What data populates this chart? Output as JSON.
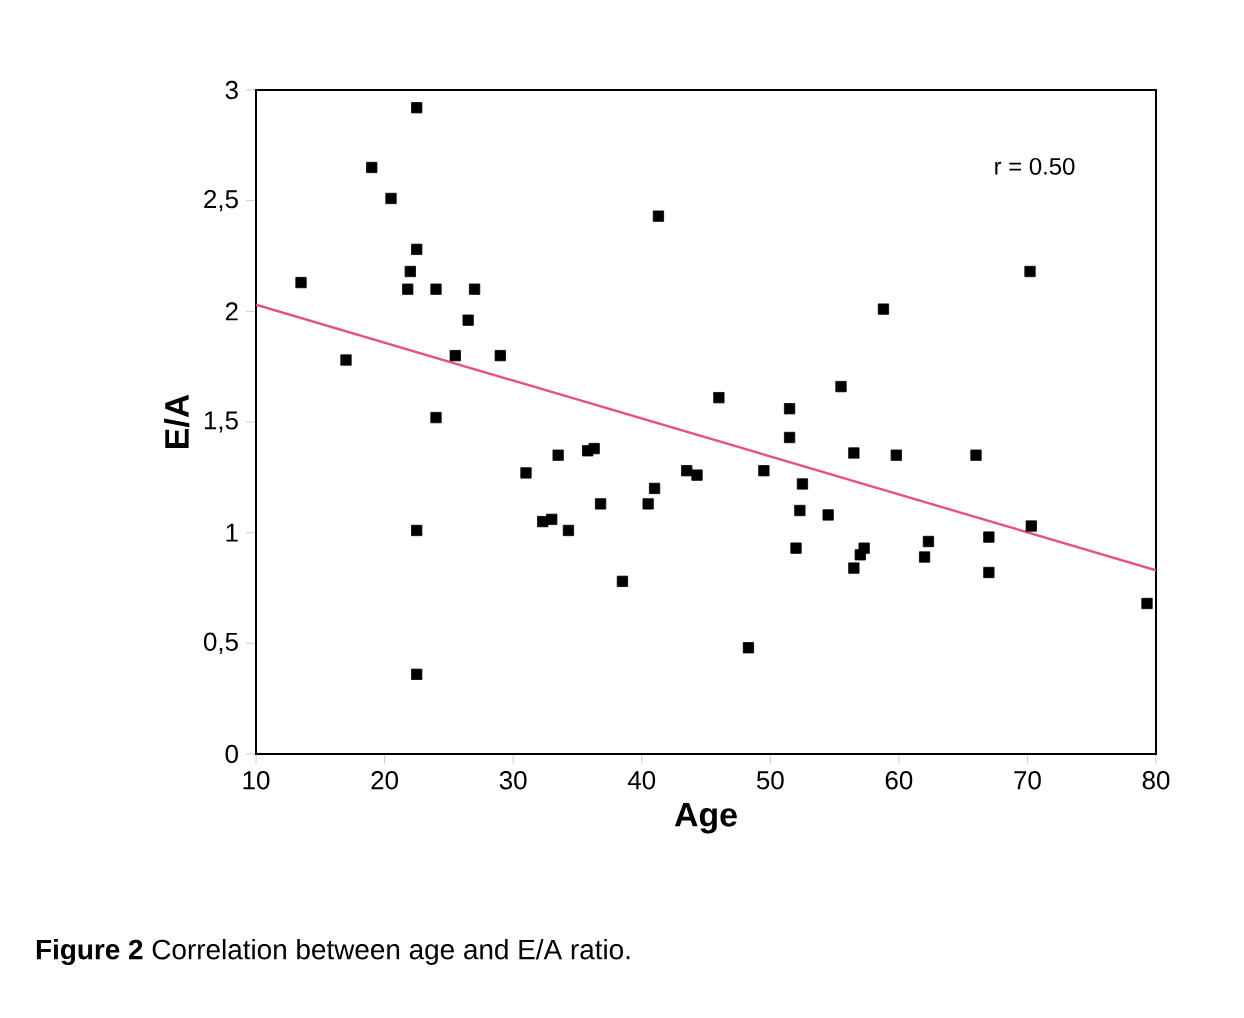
{
  "chart_data": {
    "type": "scatter",
    "xlabel": "Age",
    "ylabel": "E/A",
    "xlim": [
      10,
      80
    ],
    "ylim": [
      0,
      3
    ],
    "xticks": [
      10,
      20,
      30,
      40,
      50,
      60,
      70,
      80
    ],
    "yticks": [
      0,
      {
        "value": 0.5,
        "label": "0,5"
      },
      1,
      {
        "value": 1.5,
        "label": "1,5"
      },
      2,
      {
        "value": 2.5,
        "label": "2,5"
      },
      3
    ],
    "annotations": [
      "r = 0.50",
      "**Figure 2** Correlation between age and E/A ratio."
    ],
    "series": [
      {
        "marker": "square",
        "color": "#000000",
        "x": [
          13.5,
          17,
          19,
          20.5,
          22.5,
          22.5,
          22,
          21.8,
          22.5,
          22.5,
          24,
          24,
          26.5,
          27,
          25.5,
          29,
          31,
          32.3,
          33,
          33.5,
          34.3,
          35.8,
          36.3,
          36.8,
          38.5,
          40.5,
          41,
          41.3,
          43.5,
          44.3,
          46,
          48.3,
          49.5,
          51.5,
          51.5,
          52,
          52.3,
          52.5,
          54.5,
          55.5,
          56.5,
          56.5,
          57,
          57.3,
          58.8,
          59.8,
          62,
          62.3,
          66,
          67,
          67,
          70.2,
          70.3,
          79.3
        ],
        "values": [
          2.13,
          1.78,
          2.65,
          2.51,
          2.92,
          2.28,
          2.18,
          2.1,
          1.01,
          0.36,
          2.1,
          1.52,
          1.96,
          2.1,
          1.8,
          1.8,
          1.27,
          1.05,
          1.06,
          1.35,
          1.01,
          1.37,
          1.38,
          1.13,
          0.78,
          1.13,
          1.2,
          2.43,
          1.28,
          1.26,
          1.61,
          0.48,
          1.28,
          1.56,
          1.43,
          0.93,
          1.1,
          1.22,
          1.08,
          1.66,
          1.36,
          0.84,
          0.9,
          0.93,
          2.01,
          1.35,
          0.89,
          0.96,
          1.35,
          0.98,
          0.82,
          2.18,
          1.03,
          0.68
        ]
      },
      {
        "type": "line",
        "color": "#e8527a",
        "line_style": "solid",
        "x": [
          10,
          80
        ],
        "values": [
          2.03,
          0.83
        ]
      }
    ]
  }
}
